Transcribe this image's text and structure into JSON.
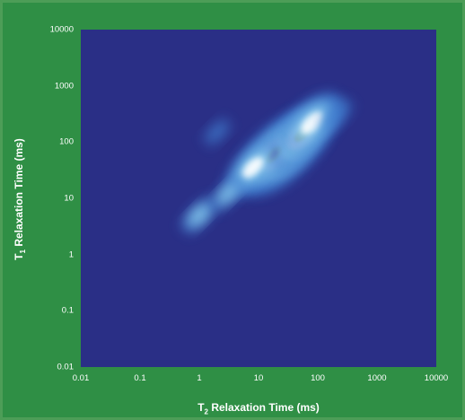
{
  "chart_data": {
    "type": "heatmap",
    "title": "",
    "xlabel_main": "T",
    "xlabel_sub": "2",
    "xlabel_rest": " Relaxation Time (ms)",
    "ylabel_main": "T",
    "ylabel_sub": "1",
    "ylabel_rest": " Relaxation Time (ms)",
    "xscale": "log",
    "yscale": "log",
    "xlim": [
      0.01,
      10000
    ],
    "ylim": [
      0.01,
      10000
    ],
    "x_ticks": [
      "0.01",
      "0.1",
      "1",
      "10",
      "100",
      "1000",
      "10000"
    ],
    "y_ticks": [
      "10000",
      "1000",
      "100",
      "10",
      "1",
      "0.1",
      "0.01"
    ],
    "colormap": [
      "#2a2f86",
      "#3f7ed0",
      "#8fd3f0",
      "#ffffff",
      "#ffd740",
      "#d62410"
    ],
    "background_color": "#2a2f86",
    "peaks": [
      {
        "t2": 30,
        "t1": 70,
        "intensity": 1.0
      },
      {
        "t2": 18,
        "t1": 60,
        "intensity": 0.95
      },
      {
        "t2": 55,
        "t1": 140,
        "intensity": 0.85
      },
      {
        "t2": 80,
        "t1": 220,
        "intensity": 0.6
      },
      {
        "t2": 8,
        "t1": 35,
        "intensity": 0.55
      },
      {
        "t2": 1,
        "t1": 5,
        "intensity": 0.25
      },
      {
        "t2": 3,
        "t1": 12,
        "intensity": 0.22
      },
      {
        "t2": 2,
        "t1": 150,
        "intensity": 0.1
      },
      {
        "t2": 200,
        "t1": 300,
        "intensity": 0.2
      }
    ]
  }
}
